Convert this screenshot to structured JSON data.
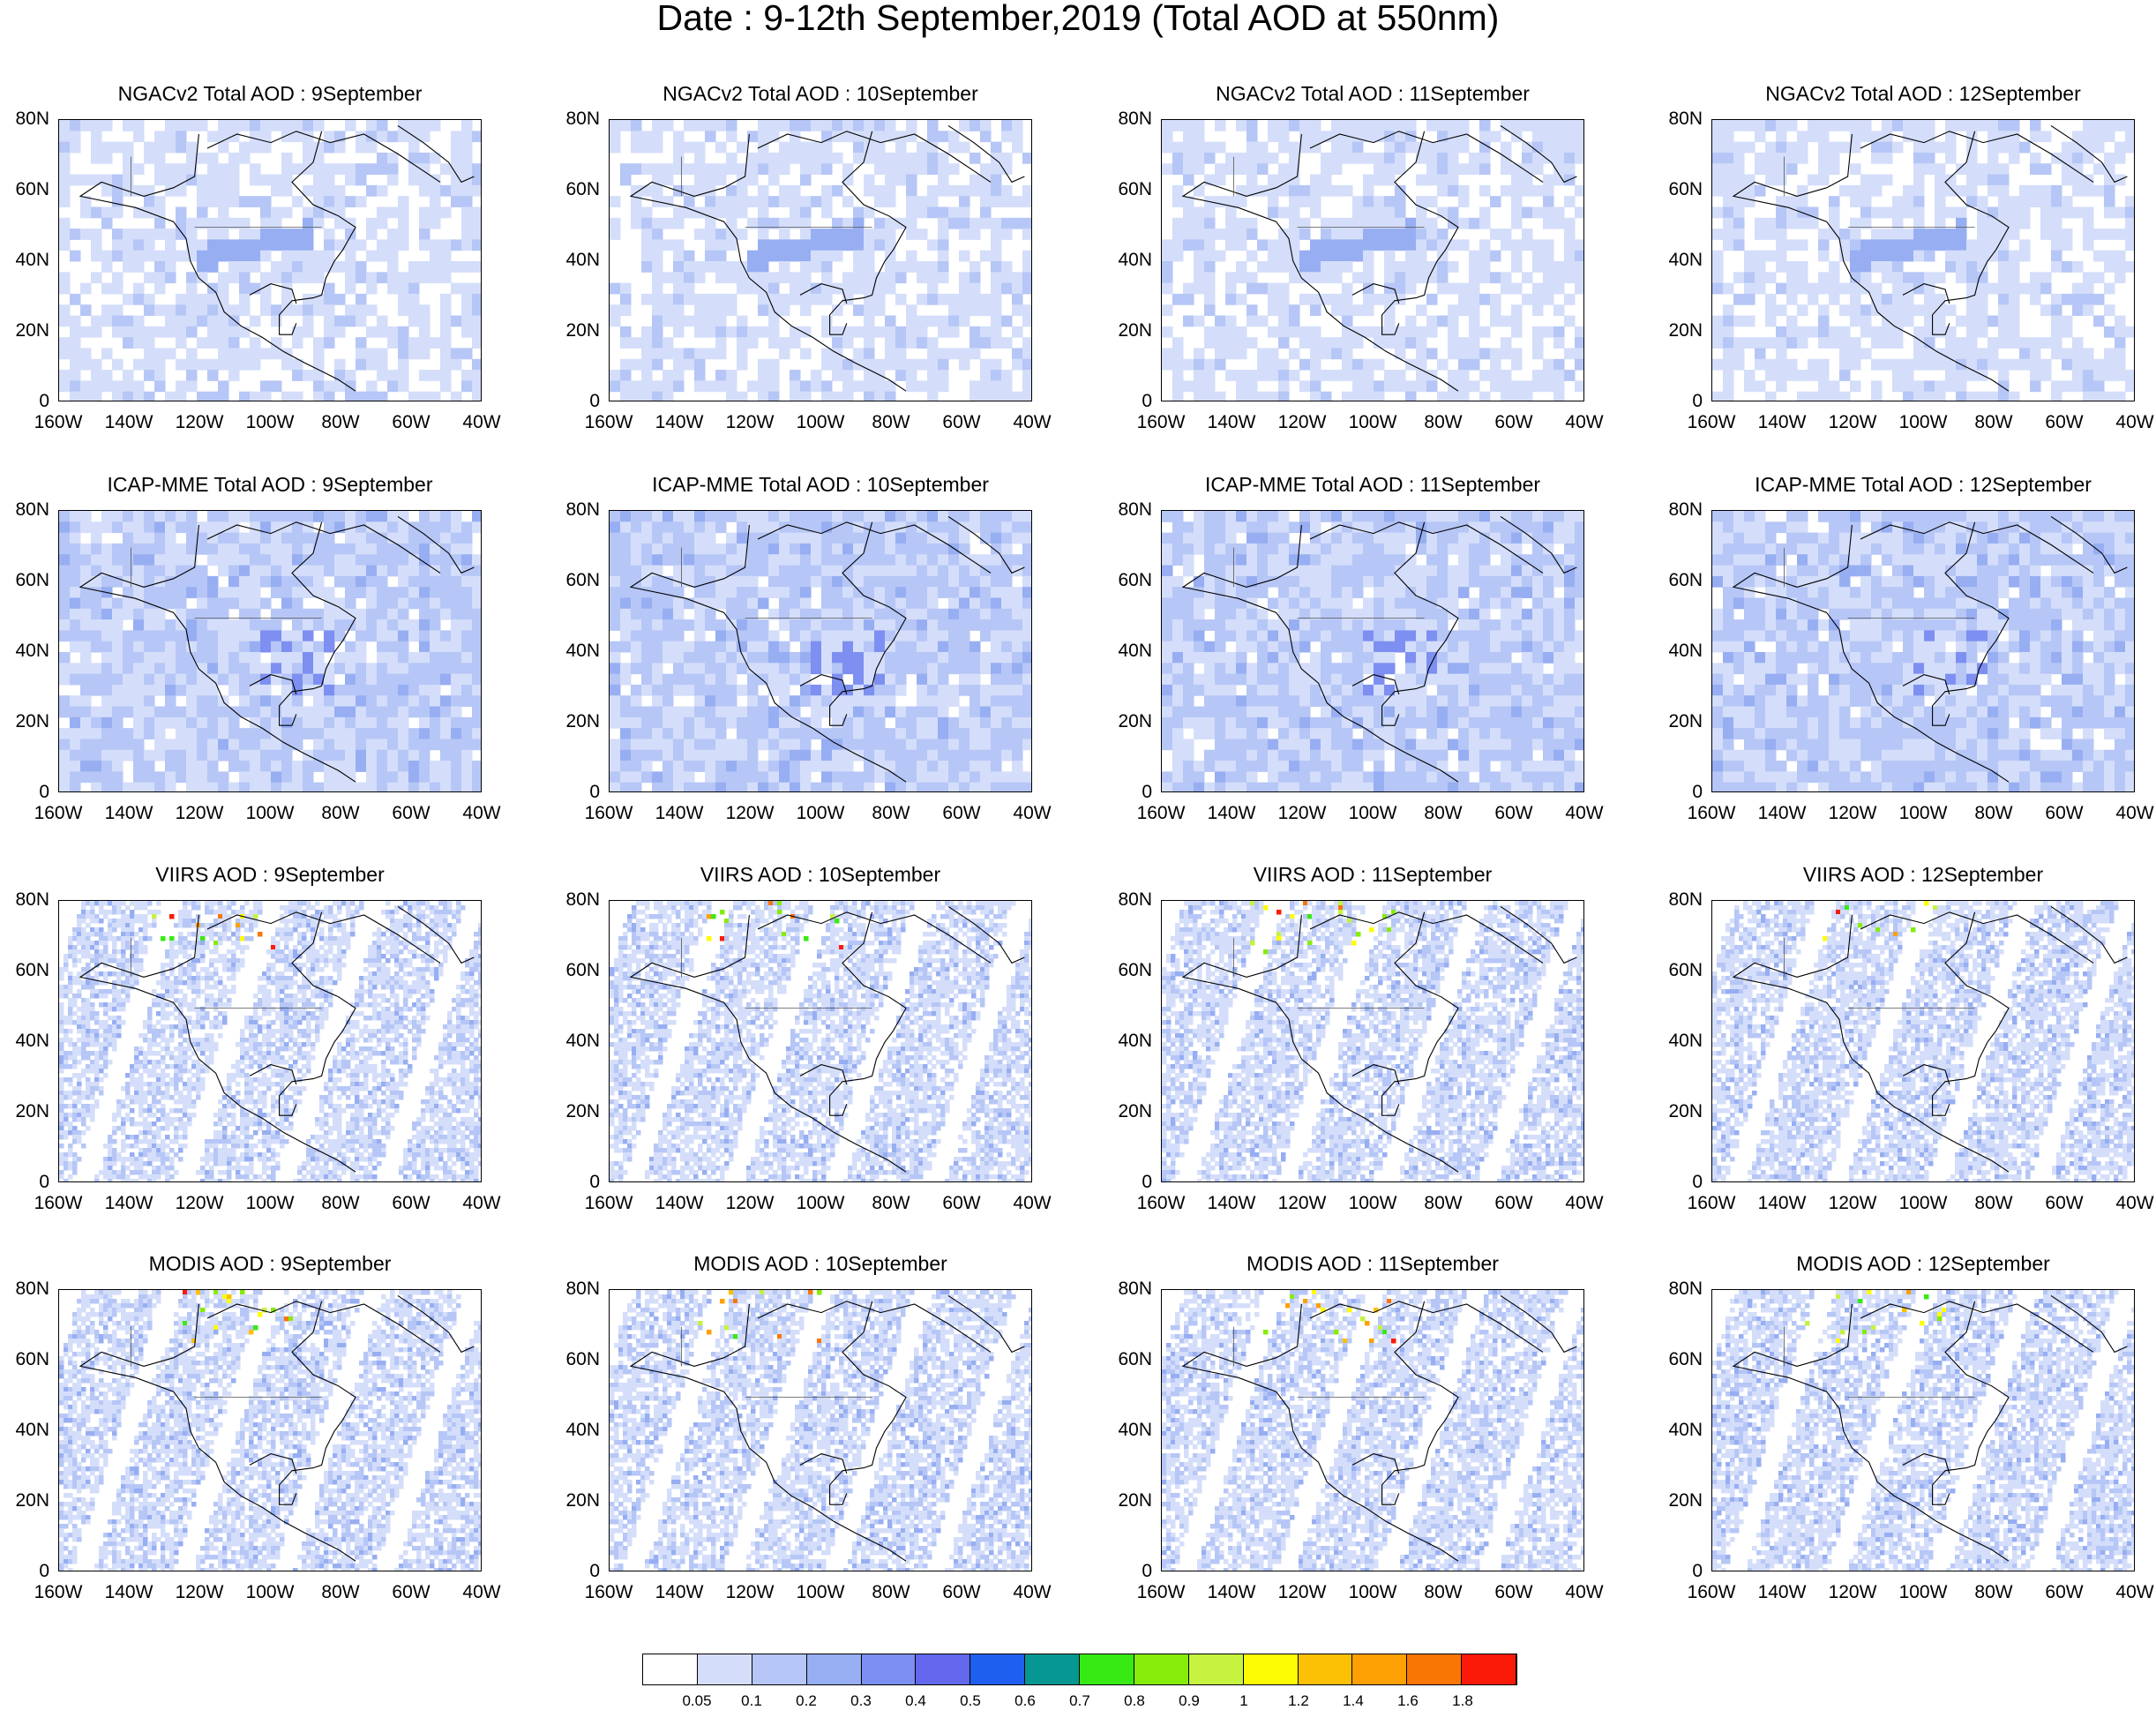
{
  "title": "Date : 9-12th September,2019 (Total AOD at 550nm)",
  "panels": [
    {
      "row": 0,
      "col": 0,
      "title": "NGACv2 Total AOD : 9September"
    },
    {
      "row": 0,
      "col": 1,
      "title": "NGACv2 Total AOD : 10September"
    },
    {
      "row": 0,
      "col": 2,
      "title": "NGACv2 Total AOD : 11September"
    },
    {
      "row": 0,
      "col": 3,
      "title": "NGACv2 Total AOD : 12September"
    },
    {
      "row": 1,
      "col": 0,
      "title": "ICAP-MME Total AOD : 9September"
    },
    {
      "row": 1,
      "col": 1,
      "title": "ICAP-MME Total AOD : 10September"
    },
    {
      "row": 1,
      "col": 2,
      "title": "ICAP-MME Total AOD : 11September"
    },
    {
      "row": 1,
      "col": 3,
      "title": "ICAP-MME Total AOD : 12September"
    },
    {
      "row": 2,
      "col": 0,
      "title": "VIIRS AOD : 9September"
    },
    {
      "row": 2,
      "col": 1,
      "title": "VIIRS AOD : 10September"
    },
    {
      "row": 2,
      "col": 2,
      "title": "VIIRS AOD : 11September"
    },
    {
      "row": 2,
      "col": 3,
      "title": "VIIRS AOD : 12September"
    },
    {
      "row": 3,
      "col": 0,
      "title": "MODIS AOD : 9September"
    },
    {
      "row": 3,
      "col": 1,
      "title": "MODIS AOD : 10September"
    },
    {
      "row": 3,
      "col": 2,
      "title": "MODIS AOD : 11September"
    },
    {
      "row": 3,
      "col": 3,
      "title": "MODIS AOD : 12September"
    }
  ],
  "axes": {
    "y_labels": [
      "80N",
      "60N",
      "40N",
      "20N",
      "0"
    ],
    "x_labels": [
      "160W",
      "140W",
      "120W",
      "100W",
      "80W",
      "60W",
      "40W"
    ]
  },
  "colorbar": {
    "labels": [
      "0.05",
      "0.1",
      "0.2",
      "0.3",
      "0.4",
      "0.5",
      "0.6",
      "0.7",
      "0.8",
      "0.9",
      "1",
      "1.2",
      "1.4",
      "1.6",
      "1.8"
    ],
    "colors": [
      "#ffffff",
      "#d4defa",
      "#b6c6f6",
      "#97aef2",
      "#7d8ff0",
      "#6368ec",
      "#1f5ff0",
      "#069792",
      "#38ea14",
      "#86ec0a",
      "#c6f240",
      "#fdfc04",
      "#fcc004",
      "#fca004",
      "#fa7604",
      "#fb1a07"
    ]
  }
}
